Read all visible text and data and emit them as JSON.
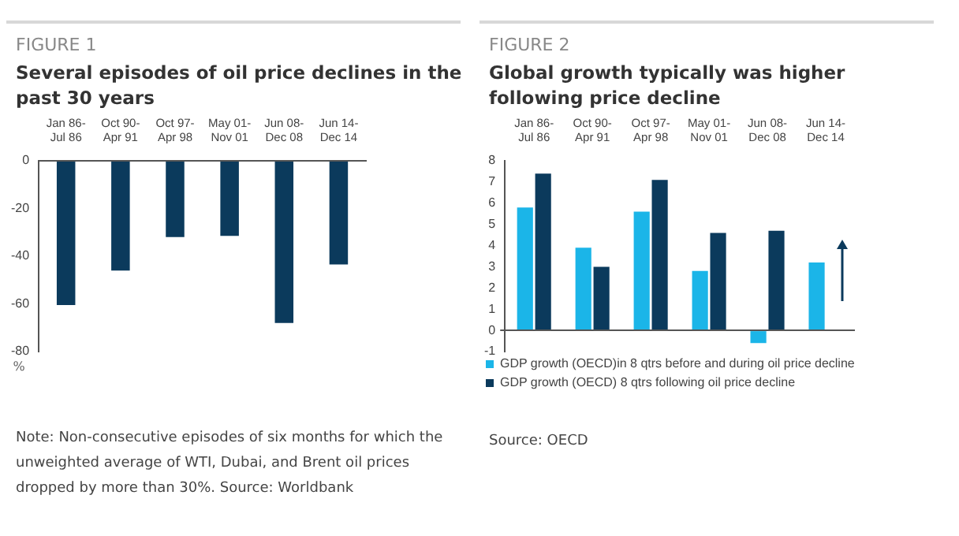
{
  "chart_data": [
    {
      "type": "bar",
      "subtitle": "FIGURE 1",
      "title": "Several episodes of oil price declines in the past 30 years",
      "ylabel": "%",
      "categories": [
        "Jan 86-Jul 86",
        "Oct 90-Apr 91",
        "Oct 97-Apr 98",
        "May 01-Nov 01",
        "Jun 08-Dec 08",
        "Jun 14-Dec 14"
      ],
      "values": [
        -60.5,
        -46,
        -32,
        -31.5,
        -68,
        -43.5
      ],
      "color": "#0b3a5c",
      "ylim": [
        -80,
        0
      ],
      "yticks": [
        -80,
        -60,
        -40,
        -20,
        0
      ],
      "legend": false,
      "annotations": [
        "Note: Non-consecutive episodes of six months for which the unweighted average of WTI, Dubai, and Brent oil prices dropped by more than 30%. Source: Worldbank"
      ]
    },
    {
      "type": "bar",
      "subtitle": "FIGURE 2",
      "title": "Global growth typically was higher following price decline",
      "categories": [
        "Jan 86-Jul 86",
        "Oct 90-Apr 91",
        "Oct 97-Apr 98",
        "May 01-Nov 01",
        "Jun 08-Dec 08",
        "Jun 14-Dec 14"
      ],
      "series": [
        {
          "name": "GDP growth (OECD)in 8 qtrs before and during oil price decline",
          "color": "#1bb5e8",
          "values": [
            5.8,
            3.9,
            5.6,
            2.8,
            -0.6,
            3.2
          ]
        },
        {
          "name": "GDP growth (OECD) 8 qtrs following oil price decline",
          "color": "#0b3a5c",
          "values": [
            7.4,
            3.0,
            7.1,
            4.6,
            4.7,
            null
          ]
        }
      ],
      "ylim": [
        -1,
        8
      ],
      "yticks": [
        -1,
        0,
        1,
        2,
        3,
        4,
        5,
        6,
        7,
        8
      ],
      "legend": "bottom",
      "annotations": [
        "Source: OECD"
      ]
    }
  ]
}
